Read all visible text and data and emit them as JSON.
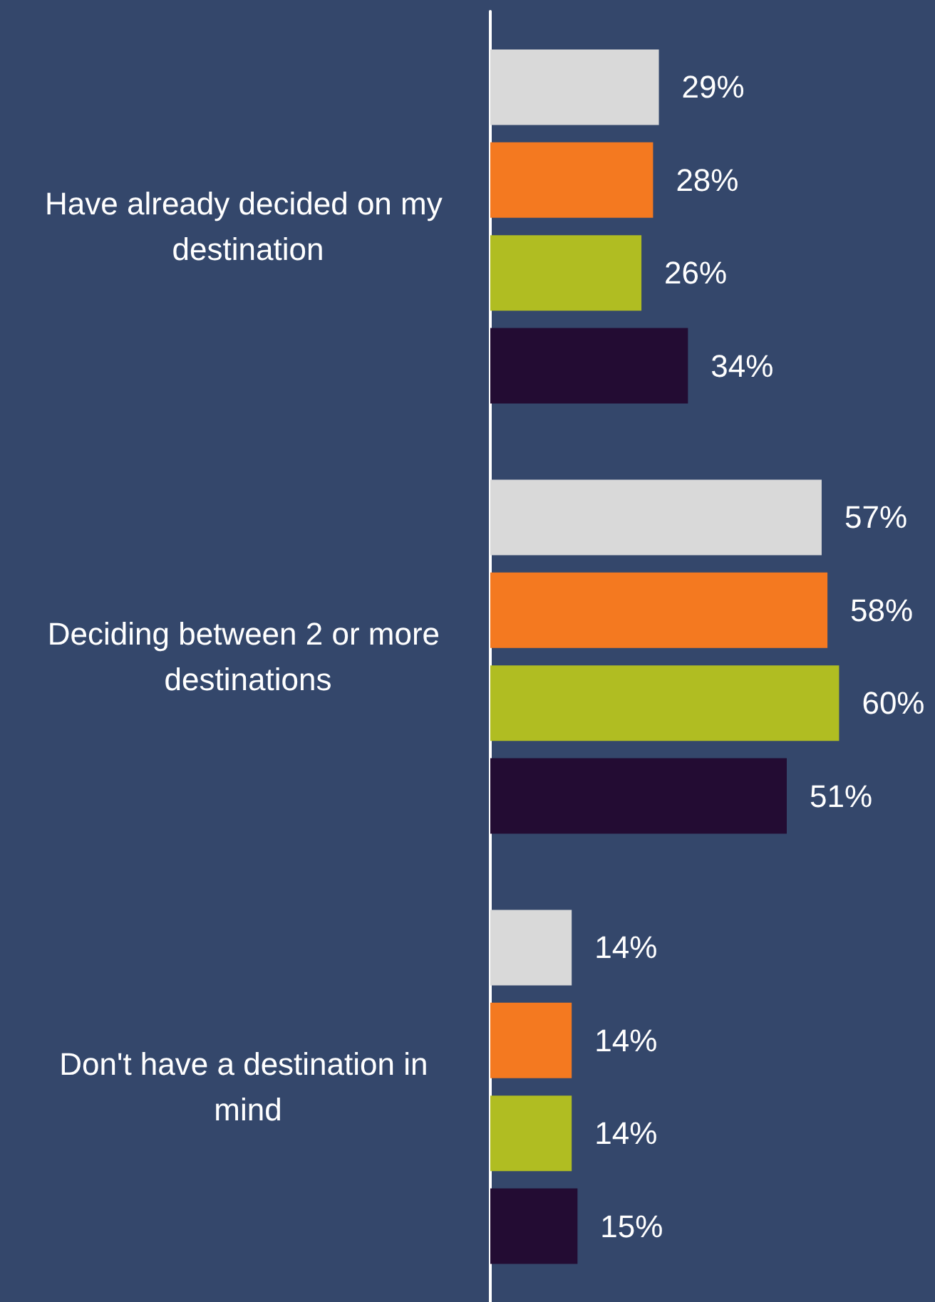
{
  "chart_data": {
    "type": "bar",
    "orientation": "horizontal",
    "categories": [
      "Have already decided on my destination",
      "Deciding between 2 or more destinations",
      "Don't have a destination in mind"
    ],
    "series": [
      {
        "color": "#d9d9d9",
        "values": [
          29,
          57,
          14
        ],
        "value_labels": [
          "29%",
          "57%",
          "14%"
        ]
      },
      {
        "color": "#f47920",
        "values": [
          28,
          58,
          14
        ],
        "value_labels": [
          "28%",
          "58%",
          "14%"
        ]
      },
      {
        "color": "#b0bd22",
        "values": [
          26,
          60,
          14
        ],
        "value_labels": [
          "26%",
          "60%",
          "14%"
        ]
      },
      {
        "color": "#230c33",
        "values": [
          34,
          51,
          15
        ],
        "value_labels": [
          "34%",
          "51%",
          "15%"
        ]
      }
    ]
  }
}
